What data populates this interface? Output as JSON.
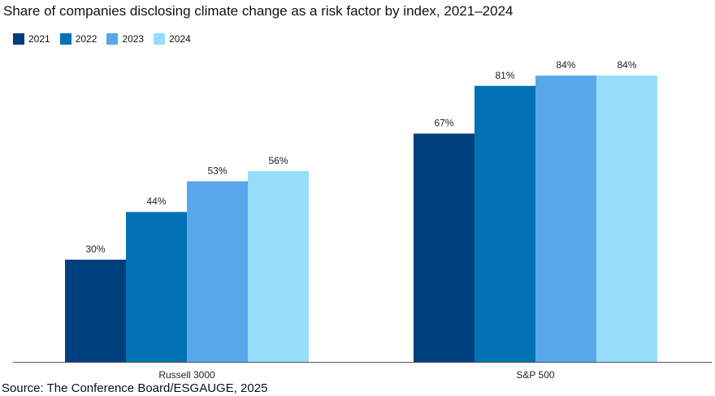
{
  "title": "Share of companies disclosing climate change as a risk factor by index, 2021–2024",
  "source": "Source: The Conference Board/ESGAUGE, 2025",
  "chart_data": {
    "type": "bar",
    "title": "Share of companies disclosing climate change as a risk factor by index, 2021–2024",
    "xlabel": "",
    "ylabel": "",
    "ylim": [
      0,
      100
    ],
    "grid": false,
    "legend_position": "top-left",
    "categories": [
      "Russell 3000",
      "S&P 500"
    ],
    "series": [
      {
        "name": "2021",
        "color": "#003f7d",
        "values": [
          30,
          67
        ],
        "labels": [
          "30%",
          "67%"
        ]
      },
      {
        "name": "2022",
        "color": "#0072b5",
        "values": [
          44,
          81
        ],
        "labels": [
          "44%",
          "81%"
        ]
      },
      {
        "name": "2023",
        "color": "#57a7ea",
        "values": [
          53,
          84
        ],
        "labels": [
          "53%",
          "84%"
        ]
      },
      {
        "name": "2024",
        "color": "#96dcfb",
        "values": [
          56,
          84
        ],
        "labels": [
          "56%",
          "84%"
        ]
      }
    ]
  }
}
